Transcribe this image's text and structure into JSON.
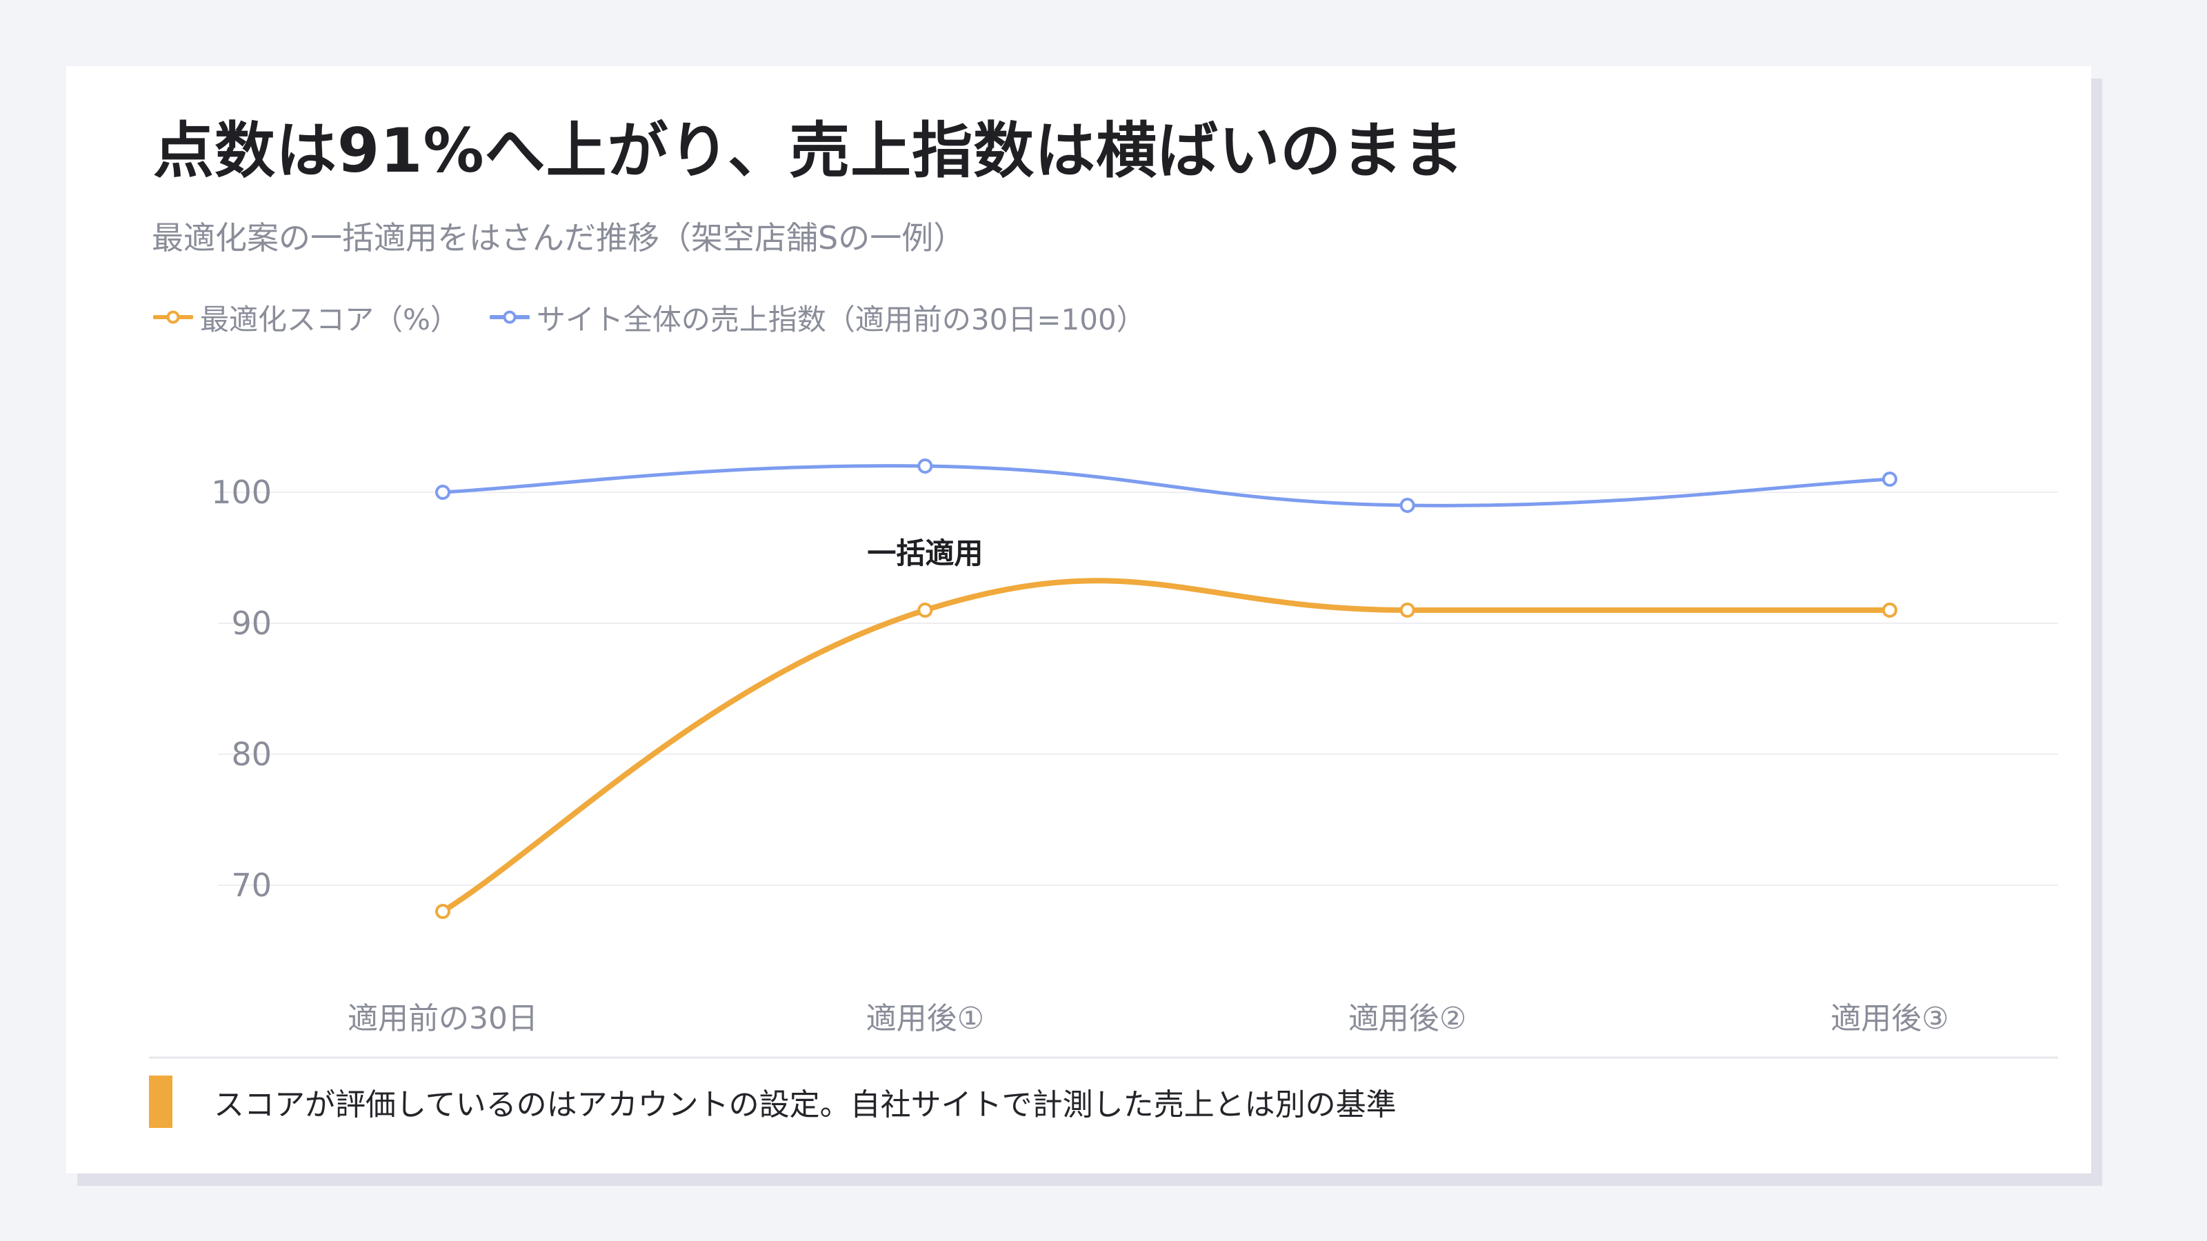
{
  "title": "点数は91%へ上がり、売上指数は横ばいのまま",
  "subtitle": "最適化案の一括適用をはさんだ推移（架空店舗Sの一例）",
  "colors": {
    "score": "#f0a93c",
    "sales": "#7d9cf0",
    "grid": "#eeeef2",
    "axis_text": "#8a8d99",
    "footnote_bar": "#f0a93c"
  },
  "chart_data": {
    "type": "line",
    "categories": [
      "適用前の30日",
      "適用後①",
      "適用後②",
      "適用後③"
    ],
    "series": [
      {
        "name": "最適化スコア（%）",
        "values": [
          68,
          91,
          91,
          91
        ],
        "color": "#f0a93c"
      },
      {
        "name": "サイト全体の売上指数（適用前の30日=100）",
        "values": [
          100,
          102,
          99,
          101
        ],
        "color": "#7d9cf0"
      }
    ],
    "yticks": [
      70,
      80,
      90,
      100
    ],
    "ylim": [
      66,
      104
    ],
    "grid": true,
    "legend": "top-left",
    "annotation": {
      "text": "一括適用",
      "category_index": 1
    }
  },
  "footnote": "スコアが評価しているのはアカウントの設定。自社サイトで計測した売上とは別の基準"
}
